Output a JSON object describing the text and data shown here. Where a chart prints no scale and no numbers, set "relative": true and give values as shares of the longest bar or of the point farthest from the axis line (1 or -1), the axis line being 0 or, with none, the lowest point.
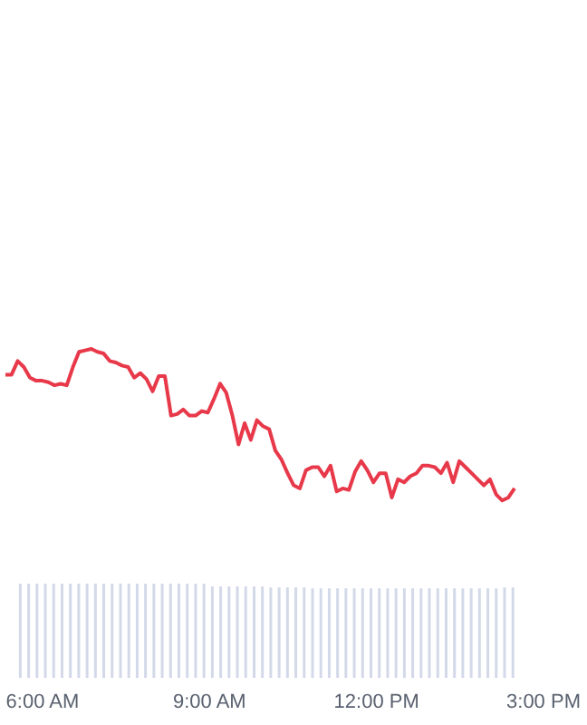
{
  "chart_data": [
    {
      "type": "line",
      "relative": true,
      "tick_labels": false,
      "categories": [
        null,
        null,
        null,
        null,
        null,
        null,
        null,
        null,
        null,
        null,
        null,
        null,
        null,
        null,
        null,
        null,
        null,
        null,
        null,
        null,
        null,
        null,
        null,
        null,
        null,
        null,
        null,
        null,
        null,
        null,
        null,
        null,
        null,
        null,
        null,
        null,
        null,
        null,
        null,
        null,
        null,
        null,
        null,
        null,
        null,
        null,
        null,
        null,
        null,
        null,
        null,
        null,
        null,
        null,
        null,
        null,
        null,
        null,
        null,
        null,
        null,
        null,
        null,
        null,
        null,
        null,
        null,
        null,
        null,
        null,
        null,
        null,
        null,
        null,
        null,
        null,
        null,
        null,
        null,
        null,
        null,
        null,
        null,
        null
      ],
      "series": [
        {
          "color": "#e8394a",
          "values": [
            0.83,
            0.83,
            0.92,
            0.88,
            0.81,
            0.79,
            0.79,
            0.78,
            0.76,
            0.77,
            0.76,
            0.88,
            0.98,
            0.99,
            1.0,
            0.98,
            0.97,
            0.92,
            0.91,
            0.89,
            0.88,
            0.81,
            0.84,
            0.8,
            0.72,
            0.82,
            0.82,
            0.56,
            0.57,
            0.6,
            0.56,
            0.56,
            0.59,
            0.58,
            0.67,
            0.77,
            0.71,
            0.56,
            0.37,
            0.51,
            0.4,
            0.53,
            0.49,
            0.47,
            0.33,
            0.27,
            0.18,
            0.1,
            0.08,
            0.2,
            0.22,
            0.22,
            0.16,
            0.23,
            0.06,
            0.08,
            0.07,
            0.19,
            0.26,
            0.2,
            0.12,
            0.18,
            0.18,
            0.02,
            0.14,
            0.12,
            0.16,
            0.18,
            0.23,
            0.23,
            0.22,
            0.18,
            0.25,
            0.12,
            0.26,
            0.22,
            0.18,
            0.14,
            0.1,
            0.14,
            0.04,
            0.0,
            0.02,
            0.08
          ]
        }
      ]
    },
    {
      "type": "bar",
      "relative": true,
      "tick_labels": "x",
      "xlim": [
        5.5,
        15
      ],
      "xticks": [
        {
          "value": 6,
          "label": "6:00 AM"
        },
        {
          "value": 9,
          "label": "9:00 AM"
        },
        {
          "value": 12,
          "label": "12:00 PM"
        },
        {
          "value": 15,
          "label": "3:00 PM"
        }
      ],
      "series": [
        {
          "color": "#d3d9e8",
          "x": [
            5.6,
            5.75,
            5.9,
            6.05,
            6.2,
            6.35,
            6.5,
            6.65,
            6.8,
            6.95,
            7.1,
            7.25,
            7.4,
            7.55,
            7.7,
            7.85,
            8.0,
            8.15,
            8.3,
            8.45,
            8.6,
            8.75,
            8.9,
            9.05,
            9.2,
            9.35,
            9.5,
            9.65,
            9.8,
            9.95,
            10.1,
            10.25,
            10.4,
            10.55,
            10.7,
            10.85,
            11.0,
            11.15,
            11.3,
            11.45,
            11.6,
            11.75,
            11.9,
            12.05,
            12.2,
            12.35,
            12.5,
            12.65,
            12.8,
            12.95,
            13.1,
            13.25,
            13.4,
            13.55,
            13.7,
            13.85,
            14.0,
            14.15,
            14.3,
            14.45
          ],
          "values": [
            1,
            1,
            1,
            1,
            1,
            1,
            1,
            1,
            1,
            1,
            1,
            1,
            1,
            1,
            1,
            1,
            1,
            1,
            1,
            1,
            1,
            1,
            1,
            0.97,
            0.97,
            0.97,
            0.97,
            0.97,
            0.97,
            0.97,
            0.96,
            0.96,
            0.96,
            0.96,
            0.96,
            0.95,
            0.95,
            0.95,
            0.95,
            0.95,
            0.95,
            0.95,
            0.95,
            0.95,
            0.95,
            0.95,
            0.95,
            0.95,
            0.95,
            0.95,
            0.95,
            0.95,
            0.95,
            0.95,
            0.95,
            0.95,
            0.95,
            0.95,
            0.96,
            0.96
          ]
        }
      ]
    }
  ]
}
